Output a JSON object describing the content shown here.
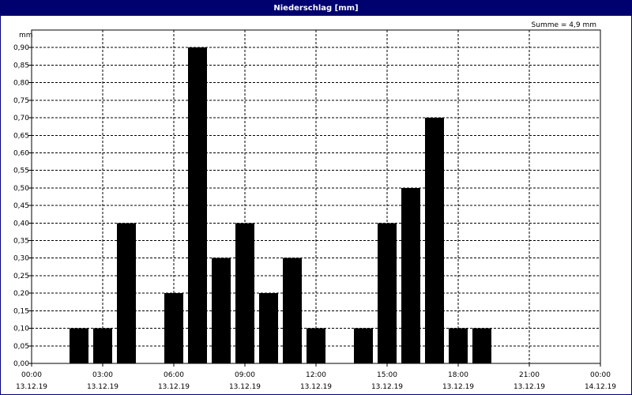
{
  "window_title": "Niederschlag [mm]",
  "summary_text": "Summe = 4,9 mm",
  "chart_data": {
    "type": "bar",
    "title": "Niederschlag [mm]",
    "ylabel": "mm",
    "ylim": [
      0,
      0.95
    ],
    "yticks": [
      0.0,
      0.05,
      0.1,
      0.15,
      0.2,
      0.25,
      0.3,
      0.35,
      0.4,
      0.45,
      0.5,
      0.55,
      0.6,
      0.65,
      0.7,
      0.75,
      0.8,
      0.85,
      0.9
    ],
    "ytick_labels": [
      "0,00",
      "0,05",
      "0,10",
      "0,15",
      "0,20",
      "0,25",
      "0,30",
      "0,35",
      "0,40",
      "0,45",
      "0,50",
      "0,55",
      "0,60",
      "0,65",
      "0,70",
      "0,75",
      "0,80",
      "0,85",
      "0,90"
    ],
    "xlim_hours": [
      0,
      24
    ],
    "xticks_hours": [
      0,
      3,
      6,
      9,
      12,
      15,
      18,
      21,
      24
    ],
    "xtick_time_labels": [
      "00:00",
      "03:00",
      "06:00",
      "09:00",
      "12:00",
      "15:00",
      "18:00",
      "21:00",
      "00:00"
    ],
    "xtick_date_labels": [
      "13.12.19",
      "13.12.19",
      "13.12.19",
      "13.12.19",
      "13.12.19",
      "13.12.19",
      "13.12.19",
      "13.12.19",
      "14.12.19"
    ],
    "bars": [
      {
        "hour": 2,
        "value": 0.1
      },
      {
        "hour": 3,
        "value": 0.1
      },
      {
        "hour": 4,
        "value": 0.4
      },
      {
        "hour": 6,
        "value": 0.2
      },
      {
        "hour": 7,
        "value": 0.9
      },
      {
        "hour": 8,
        "value": 0.3
      },
      {
        "hour": 9,
        "value": 0.4
      },
      {
        "hour": 10,
        "value": 0.2
      },
      {
        "hour": 11,
        "value": 0.3
      },
      {
        "hour": 12,
        "value": 0.1
      },
      {
        "hour": 14,
        "value": 0.1
      },
      {
        "hour": 15,
        "value": 0.4
      },
      {
        "hour": 16,
        "value": 0.5
      },
      {
        "hour": 17,
        "value": 0.7
      },
      {
        "hour": 18,
        "value": 0.1
      },
      {
        "hour": 19,
        "value": 0.1
      }
    ],
    "grid": true,
    "bar_color": "#000000"
  }
}
